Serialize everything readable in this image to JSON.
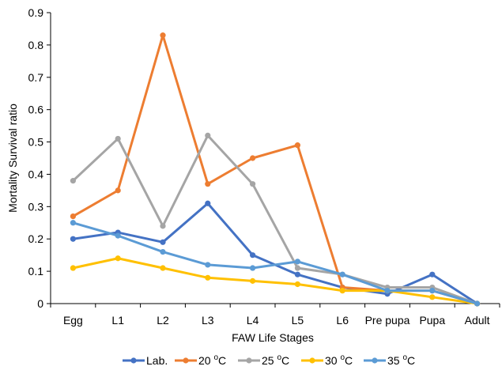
{
  "chart_data": {
    "type": "line",
    "title": "",
    "xlabel": "FAW Life Stages",
    "ylabel": "Mortality Survival ratio",
    "ylim": [
      0,
      0.9
    ],
    "yticks": [
      "0",
      "0.1",
      "0.2",
      "0.3",
      "0.4",
      "0.5",
      "0.6",
      "0.7",
      "0.8",
      "0.9"
    ],
    "grid": false,
    "legend_position": "bottom",
    "categories": [
      "Egg",
      "L1",
      "L2",
      "L3",
      "L4",
      "L5",
      "L6",
      "Pre pupa",
      "Pupa",
      "Adult"
    ],
    "series": [
      {
        "name": "Lab.",
        "color": "#4472C4",
        "values": [
          0.2,
          0.22,
          0.19,
          0.31,
          0.15,
          0.09,
          0.05,
          0.03,
          0.09,
          0
        ]
      },
      {
        "name": "20 °C",
        "color": "#ED7D31",
        "values": [
          0.27,
          0.35,
          0.83,
          0.37,
          0.45,
          0.49,
          0.05,
          0.04,
          0.04,
          0
        ]
      },
      {
        "name": "25 °C",
        "color": "#A5A5A5",
        "values": [
          0.38,
          0.51,
          0.24,
          0.52,
          0.37,
          0.11,
          0.09,
          0.05,
          0.05,
          0
        ]
      },
      {
        "name": "30 °C",
        "color": "#FFC000",
        "values": [
          0.11,
          0.14,
          0.11,
          0.08,
          0.07,
          0.06,
          0.04,
          0.04,
          0.02,
          0
        ]
      },
      {
        "name": "35 °C",
        "color": "#5B9BD5",
        "values": [
          0.25,
          0.21,
          0.16,
          0.12,
          0.11,
          0.13,
          0.09,
          0.04,
          0.04,
          0
        ]
      }
    ]
  }
}
